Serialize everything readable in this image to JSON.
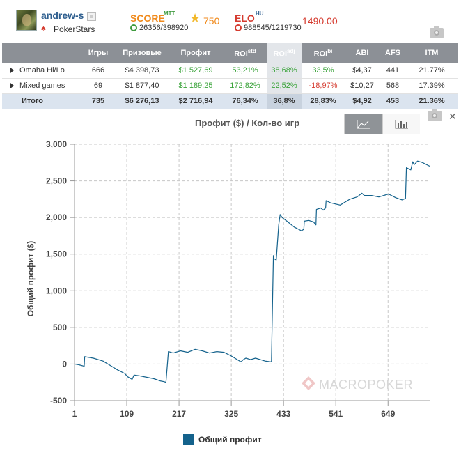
{
  "profile": {
    "username": "andrew-s",
    "site": "PokerStars",
    "score_label": "SCORE",
    "score_sup": "MTT",
    "score_rank": "26356/398920",
    "score_value": "750",
    "elo_label": "ELO",
    "elo_sup": "HU",
    "elo_rank": "988545/1219730",
    "elo_value": "1490.00"
  },
  "table": {
    "headers": [
      "",
      "Игры",
      "Призовые",
      "Профит",
      "ROI",
      "ROI",
      "ROI",
      "ABI",
      "AFS",
      "ITM"
    ],
    "roi_sups": [
      "std",
      "adj",
      "bi"
    ],
    "rows": [
      {
        "name": "Omaha Hi/Lo",
        "games": "666",
        "prizes": "$4 398,73",
        "profit": "$1 527,69",
        "roi_std": "53,21%",
        "roi_adj": "38,68%",
        "roi_bi": "33,5%",
        "abi": "$4,37",
        "afs": "441",
        "itm": "21.77%"
      },
      {
        "name": "Mixed games",
        "games": "69",
        "prizes": "$1 877,40",
        "profit": "$1 189,25",
        "roi_std": "172,82%",
        "roi_adj": "22,52%",
        "roi_bi": "-18,97%",
        "abi": "$10,27",
        "afs": "568",
        "itm": "17.39%"
      }
    ],
    "total": {
      "name": "Итого",
      "games": "735",
      "prizes": "$6 276,13",
      "profit": "$2 716,94",
      "roi_std": "76,34%",
      "roi_adj": "36,8%",
      "roi_bi": "28,83%",
      "abi": "$4,92",
      "afs": "453",
      "itm": "21.36%"
    }
  },
  "watermark": "MACROPOKER",
  "colors": {
    "line": "#14628c",
    "header_bg": "#8c9096",
    "positive": "#3aa33a",
    "negative": "#d53b2f",
    "accent_orange": "#f08a1c"
  },
  "chart_data": {
    "type": "line",
    "title": "Профит ($) / Кол-во игр",
    "xlabel": "",
    "ylabel": "Общий профит ($)",
    "xlim": [
      1,
      735
    ],
    "ylim": [
      -500,
      3000
    ],
    "xticks": [
      1,
      109,
      217,
      325,
      433,
      541,
      649
    ],
    "yticks": [
      -500,
      0,
      500,
      1000,
      1500,
      2000,
      2500,
      3000
    ],
    "ytick_labels": [
      "-500",
      "0",
      "500",
      "1,000",
      "1,500",
      "2,000",
      "2,500",
      "3,000"
    ],
    "grid": true,
    "legend_position": "bottom-center",
    "series": [
      {
        "name": "Общий профит",
        "x": [
          1,
          10,
          21,
          22,
          40,
          60,
          75,
          90,
          105,
          110,
          115,
          120,
          124,
          135,
          150,
          165,
          178,
          186,
          190,
          195,
          205,
          220,
          235,
          250,
          265,
          280,
          295,
          310,
          325,
          335,
          345,
          350,
          355,
          365,
          375,
          385,
          395,
          408,
          412,
          413,
          418,
          423,
          426,
          430,
          440,
          455,
          470,
          475,
          476,
          485,
          495,
          500,
          501,
          510,
          515,
          520,
          521,
          530,
          550,
          570,
          585,
          595,
          600,
          615,
          630,
          650,
          665,
          678,
          685,
          687,
          696,
          700,
          703,
          710,
          720,
          735
        ],
        "y": [
          0,
          -10,
          -30,
          100,
          80,
          40,
          -20,
          -80,
          -130,
          -170,
          -190,
          -210,
          -150,
          -160,
          -180,
          -200,
          -230,
          -240,
          -250,
          170,
          150,
          180,
          160,
          200,
          180,
          150,
          170,
          160,
          110,
          70,
          30,
          60,
          80,
          60,
          80,
          60,
          40,
          30,
          1480,
          1440,
          1420,
          1900,
          2040,
          2000,
          1950,
          1870,
          1820,
          1840,
          1950,
          1960,
          1940,
          1900,
          2110,
          2130,
          2100,
          2130,
          2230,
          2200,
          2170,
          2250,
          2280,
          2330,
          2300,
          2300,
          2280,
          2320,
          2270,
          2240,
          2260,
          2680,
          2650,
          2760,
          2720,
          2770,
          2750,
          2700
        ]
      }
    ]
  }
}
